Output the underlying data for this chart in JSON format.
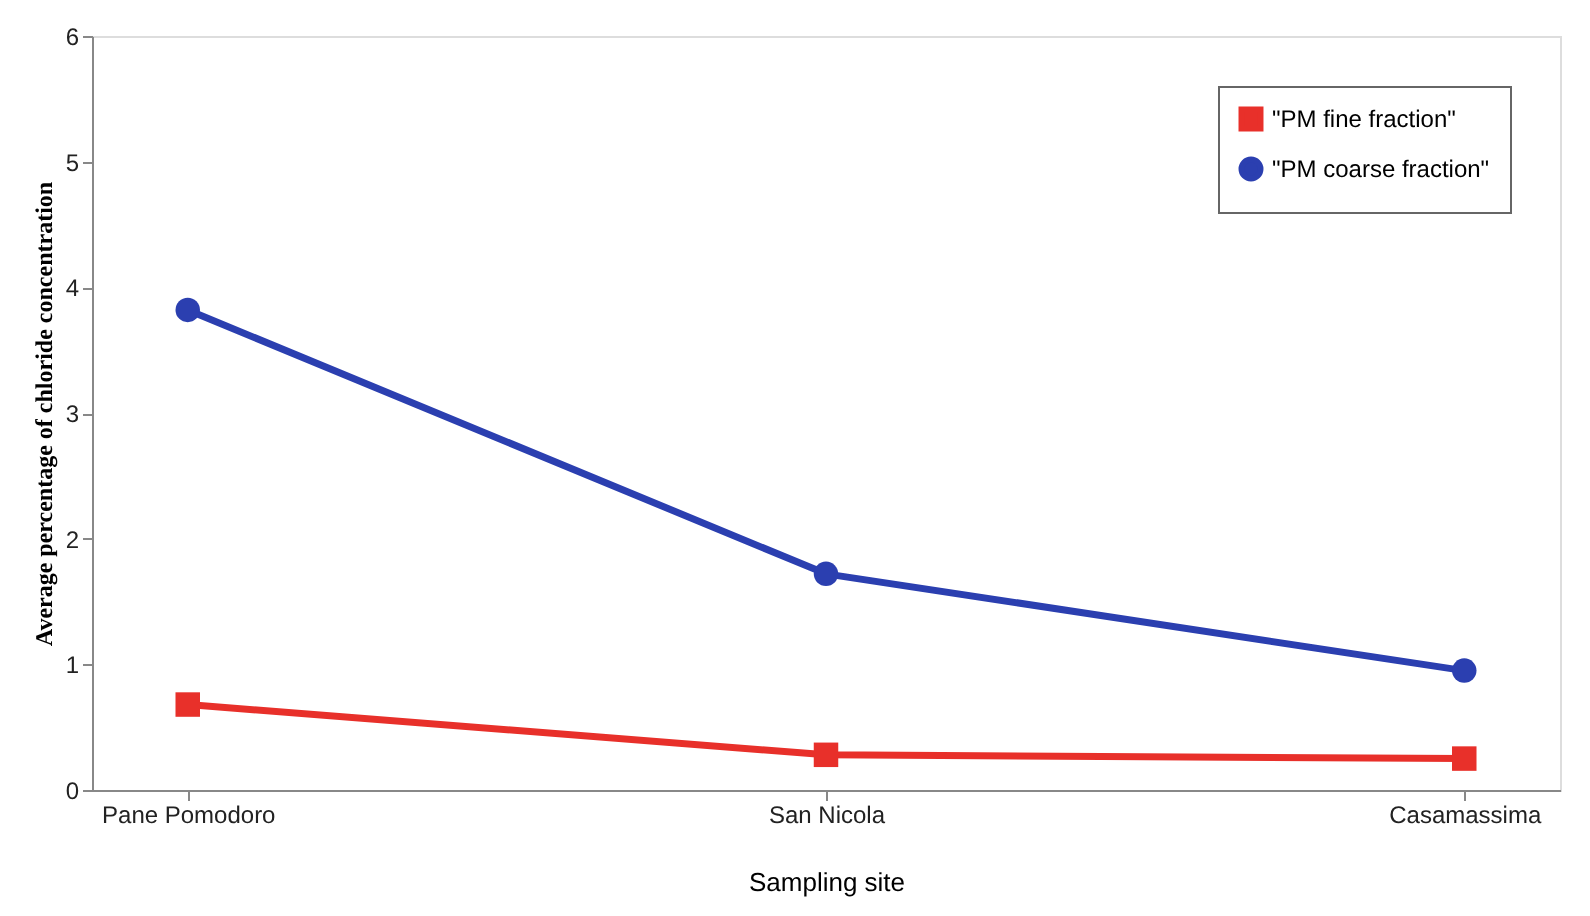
{
  "chart_data": {
    "type": "line",
    "xlabel": "Sampling site",
    "ylabel": "Average percentage of chloride concentration",
    "categories": [
      "Pane  Pomodoro",
      "San Nicola",
      "Casamassima"
    ],
    "series": [
      {
        "name": "\"PM fine fraction\"",
        "color": "#e8302a",
        "values": [
          0.68,
          0.28,
          0.25
        ],
        "marker": "square"
      },
      {
        "name": "\"PM coarse fraction\"",
        "color": "#2b3fb0",
        "values": [
          3.82,
          1.72,
          0.95
        ],
        "marker": "circle"
      }
    ],
    "ylim": [
      0,
      6
    ],
    "yticks": [
      0,
      1,
      2,
      3,
      4,
      5,
      6
    ],
    "grid": false,
    "legend": "top right",
    "line_style": "solid"
  }
}
